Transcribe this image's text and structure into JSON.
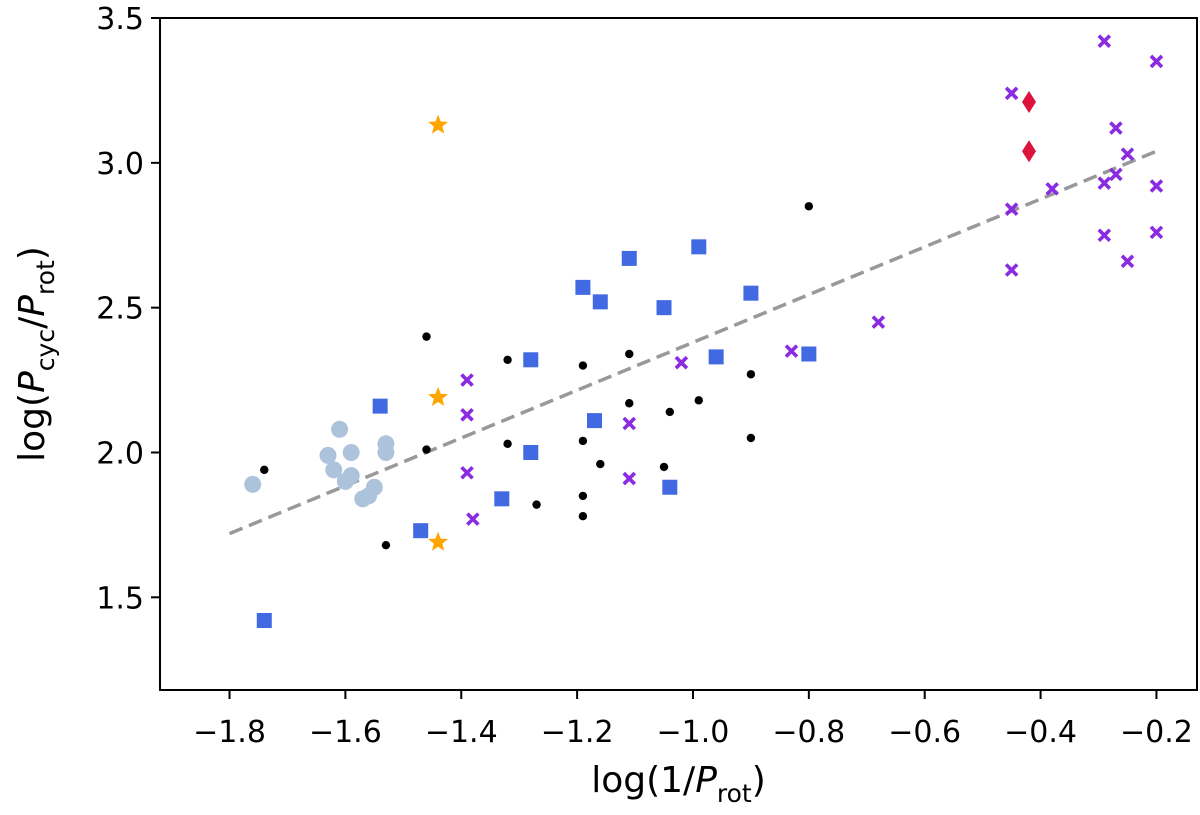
{
  "chart_data": {
    "type": "scatter",
    "title": "",
    "xlabel": {
      "prefix": "log(1/",
      "var": "P",
      "sub": "rot",
      "suffix": ")"
    },
    "ylabel": {
      "prefix": "log(",
      "var1": "P",
      "sub1": "cyc",
      "mid": "/",
      "var2": "P",
      "sub2": "rot",
      "suffix": ")"
    },
    "xlim": [
      -1.92,
      -0.13
    ],
    "ylim": [
      1.18,
      3.5
    ],
    "xticks": [
      -1.8,
      -1.6,
      -1.4,
      -1.2,
      -1.0,
      -0.8,
      -0.6,
      -0.4,
      -0.2
    ],
    "yticks": [
      1.5,
      2.0,
      2.5,
      3.0,
      3.5
    ],
    "xtick_labels": [
      "−1.8",
      "−1.6",
      "−1.4",
      "−1.2",
      "−1.0",
      "−0.8",
      "−0.6",
      "−0.4",
      "−0.2"
    ],
    "ytick_labels": [
      "1.5",
      "2.0",
      "2.5",
      "3.0",
      "3.5"
    ],
    "grid": false,
    "fit_line": {
      "x": [
        -1.8,
        -0.2
      ],
      "y": [
        1.72,
        3.04
      ],
      "color": "#999999",
      "style": "dashed"
    },
    "series": [
      {
        "name": "light-blue-circles",
        "marker": "circle",
        "color": "#adc3dc",
        "x": [
          -1.76,
          -1.63,
          -1.62,
          -1.61,
          -1.6,
          -1.59,
          -1.59,
          -1.57,
          -1.56,
          -1.55,
          -1.53,
          -1.53
        ],
        "y": [
          1.89,
          1.99,
          1.94,
          2.08,
          1.9,
          1.92,
          2.0,
          1.84,
          1.85,
          1.88,
          2.0,
          2.03
        ]
      },
      {
        "name": "black-dots",
        "marker": "dot",
        "color": "#000000",
        "x": [
          -1.74,
          -1.53,
          -1.46,
          -1.46,
          -1.32,
          -1.32,
          -1.27,
          -1.19,
          -1.19,
          -1.19,
          -1.19,
          -1.16,
          -1.11,
          -1.11,
          -1.04,
          -1.05,
          -0.99,
          -0.9,
          -0.9,
          -0.8
        ],
        "y": [
          1.94,
          1.68,
          2.4,
          2.01,
          2.32,
          2.03,
          1.82,
          2.3,
          2.04,
          1.85,
          1.78,
          1.96,
          2.34,
          2.17,
          2.14,
          1.95,
          2.18,
          2.27,
          2.05,
          2.85
        ]
      },
      {
        "name": "blue-squares",
        "marker": "square",
        "color": "#4169e1",
        "x": [
          -1.74,
          -1.54,
          -1.47,
          -1.33,
          -1.28,
          -1.28,
          -1.19,
          -1.17,
          -1.16,
          -1.11,
          -1.05,
          -1.04,
          -0.99,
          -0.96,
          -0.9,
          -0.8
        ],
        "y": [
          1.42,
          2.16,
          1.73,
          1.84,
          2.32,
          2.0,
          2.57,
          2.11,
          2.52,
          2.67,
          2.5,
          1.88,
          2.71,
          2.33,
          2.55,
          2.34
        ]
      },
      {
        "name": "orange-stars",
        "marker": "star",
        "color": "#ffa500",
        "x": [
          -1.44,
          -1.44,
          -1.44
        ],
        "y": [
          3.13,
          2.19,
          1.69
        ]
      },
      {
        "name": "purple-crosses",
        "marker": "x",
        "color": "#8a2be2",
        "x": [
          -1.39,
          -1.39,
          -1.39,
          -1.38,
          -1.11,
          -1.11,
          -1.02,
          -0.83,
          -0.68,
          -0.45,
          -0.45,
          -0.45,
          -0.38,
          -0.29,
          -0.29,
          -0.29,
          -0.27,
          -0.27,
          -0.25,
          -0.25,
          -0.2,
          -0.2,
          -0.2
        ],
        "y": [
          2.25,
          2.13,
          1.93,
          1.77,
          2.1,
          1.91,
          2.31,
          2.35,
          2.45,
          3.24,
          2.84,
          2.63,
          2.91,
          3.42,
          2.93,
          2.75,
          3.12,
          2.96,
          3.03,
          2.66,
          3.35,
          2.92,
          2.76
        ]
      },
      {
        "name": "red-diamonds",
        "marker": "diamond",
        "color": "#dc143c",
        "x": [
          -0.42,
          -0.42
        ],
        "y": [
          3.21,
          3.04
        ]
      }
    ]
  }
}
